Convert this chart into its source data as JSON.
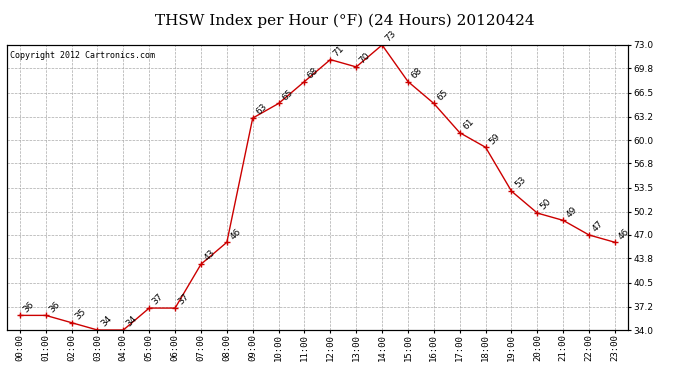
{
  "title": "THSW Index per Hour (°F) (24 Hours) 20120424",
  "copyright": "Copyright 2012 Cartronics.com",
  "hours": [
    "00:00",
    "01:00",
    "02:00",
    "03:00",
    "04:00",
    "05:00",
    "06:00",
    "07:00",
    "08:00",
    "09:00",
    "10:00",
    "11:00",
    "12:00",
    "13:00",
    "14:00",
    "15:00",
    "16:00",
    "17:00",
    "18:00",
    "19:00",
    "20:00",
    "21:00",
    "22:00",
    "23:00"
  ],
  "values": [
    36,
    36,
    35,
    34,
    34,
    37,
    37,
    43,
    46,
    63,
    65,
    68,
    71,
    70,
    73,
    68,
    65,
    61,
    59,
    53,
    50,
    49,
    47,
    46
  ],
  "line_color": "#cc0000",
  "marker_color": "#cc0000",
  "bg_color": "#ffffff",
  "grid_color": "#aaaaaa",
  "ylim_min": 34.0,
  "ylim_max": 73.0,
  "yticks": [
    34.0,
    37.2,
    40.5,
    43.8,
    47.0,
    50.2,
    53.5,
    56.8,
    60.0,
    63.2,
    66.5,
    69.8,
    73.0
  ],
  "title_fontsize": 11,
  "label_fontsize": 6.5,
  "annotation_fontsize": 6.5,
  "copyright_fontsize": 6
}
